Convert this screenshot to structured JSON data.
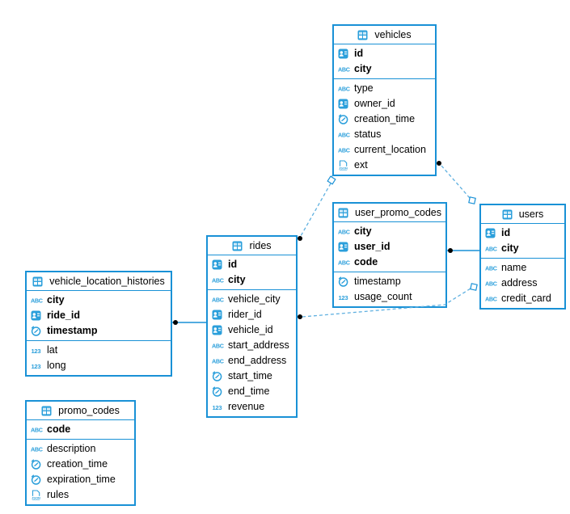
{
  "diagram": {
    "tables": [
      {
        "name": "vehicles",
        "primary_keys": [
          {
            "icon": "uuid",
            "label": "id"
          },
          {
            "icon": "text",
            "label": "city"
          }
        ],
        "columns": [
          {
            "icon": "text",
            "label": "type"
          },
          {
            "icon": "uuid",
            "label": "owner_id"
          },
          {
            "icon": "timestamp",
            "label": "creation_time"
          },
          {
            "icon": "text",
            "label": "status"
          },
          {
            "icon": "text",
            "label": "current_location"
          },
          {
            "icon": "json",
            "label": "ext"
          }
        ]
      },
      {
        "name": "user_promo_codes",
        "primary_keys": [
          {
            "icon": "text",
            "label": "city"
          },
          {
            "icon": "uuid",
            "label": "user_id"
          },
          {
            "icon": "text",
            "label": "code"
          }
        ],
        "columns": [
          {
            "icon": "timestamp",
            "label": "timestamp"
          },
          {
            "icon": "number",
            "label": "usage_count"
          }
        ]
      },
      {
        "name": "users",
        "primary_keys": [
          {
            "icon": "uuid",
            "label": "id"
          },
          {
            "icon": "text",
            "label": "city"
          }
        ],
        "columns": [
          {
            "icon": "text",
            "label": "name"
          },
          {
            "icon": "text",
            "label": "address"
          },
          {
            "icon": "text",
            "label": "credit_card"
          }
        ]
      },
      {
        "name": "rides",
        "primary_keys": [
          {
            "icon": "uuid",
            "label": "id"
          },
          {
            "icon": "text",
            "label": "city"
          }
        ],
        "columns": [
          {
            "icon": "text",
            "label": "vehicle_city"
          },
          {
            "icon": "uuid",
            "label": "rider_id"
          },
          {
            "icon": "uuid",
            "label": "vehicle_id"
          },
          {
            "icon": "text",
            "label": "start_address"
          },
          {
            "icon": "text",
            "label": "end_address"
          },
          {
            "icon": "timestamp",
            "label": "start_time"
          },
          {
            "icon": "timestamp",
            "label": "end_time"
          },
          {
            "icon": "number",
            "label": "revenue"
          }
        ]
      },
      {
        "name": "vehicle_location_histories",
        "primary_keys": [
          {
            "icon": "text",
            "label": "city"
          },
          {
            "icon": "uuid",
            "label": "ride_id"
          },
          {
            "icon": "timestamp",
            "label": "timestamp"
          }
        ],
        "columns": [
          {
            "icon": "number",
            "label": "lat"
          },
          {
            "icon": "number",
            "label": "long"
          }
        ]
      },
      {
        "name": "promo_codes",
        "primary_keys": [
          {
            "icon": "text",
            "label": "code"
          }
        ],
        "columns": [
          {
            "icon": "text",
            "label": "description"
          },
          {
            "icon": "timestamp",
            "label": "creation_time"
          },
          {
            "icon": "timestamp",
            "label": "expiration_time"
          },
          {
            "icon": "json",
            "label": "rules"
          }
        ]
      }
    ],
    "relations": [
      {
        "from": "rides",
        "to": "vehicles",
        "style": "dashed"
      },
      {
        "from": "users",
        "to": "vehicles",
        "style": "dashed"
      },
      {
        "from": "users",
        "to": "rides",
        "style": "dashed"
      },
      {
        "from": "rides",
        "to": "vehicle_location_histories",
        "style": "solid"
      },
      {
        "from": "users",
        "to": "user_promo_codes",
        "style": "solid"
      }
    ],
    "colors": {
      "accent": "#1991d6",
      "icon_blue": "#2b9fdb",
      "dashed_line": "#5fb0e0",
      "dot": "#000000",
      "background": "#ffffff"
    }
  }
}
